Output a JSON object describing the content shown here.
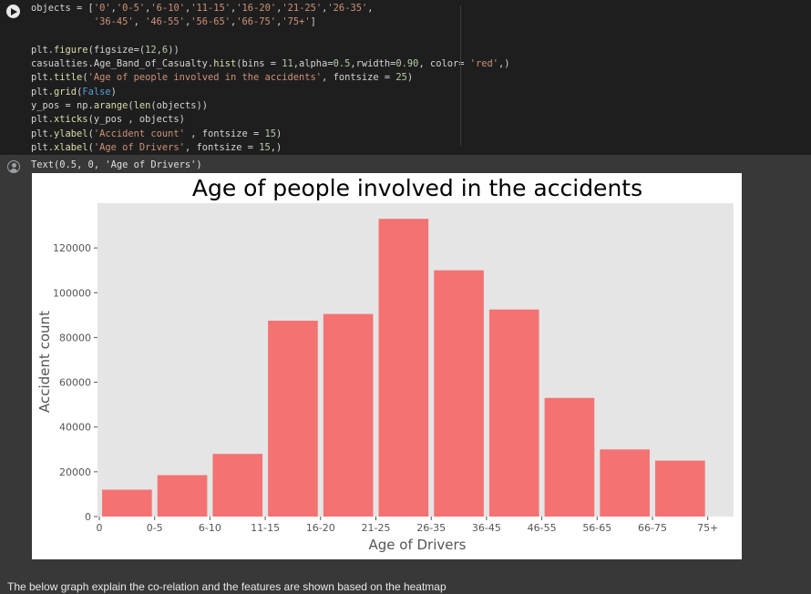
{
  "code_cell": {
    "lines": [
      "objects = ['0','0-5','6-10','11-15','16-20','21-25','26-35',",
      "           '36-45', '46-55','56-65','66-75','75+']",
      "",
      "plt.figure(figsize=(12,6))",
      "casualties.Age_Band_of_Casualty.hist(bins = 11,alpha=0.5,rwidth=0.90, color= 'red',)",
      "plt.title('Age of people involved in the accidents', fontsize = 25)",
      "plt.grid(False)",
      "y_pos = np.arange(len(objects))",
      "plt.xticks(y_pos , objects)",
      "plt.ylabel('Accident count' , fontsize = 15)",
      "plt.xlabel('Age of Drivers', fontsize = 15,)"
    ]
  },
  "output": {
    "text": "Text(0.5, 0, 'Age of Drivers')"
  },
  "chart_data": {
    "type": "bar",
    "title": "Age of people involved in the accidents",
    "xlabel": "Age of Drivers",
    "ylabel": "Accident count",
    "categories": [
      "0",
      "0-5",
      "6-10",
      "11-15",
      "16-20",
      "21-25",
      "26-35",
      "36-45",
      "46-55",
      "56-65",
      "66-75",
      "75+"
    ],
    "values": [
      0,
      12000,
      18500,
      28000,
      87500,
      90500,
      133000,
      110000,
      92500,
      53000,
      30000,
      25000
    ],
    "yticks": [
      "0",
      "20000",
      "40000",
      "60000",
      "80000",
      "100000",
      "120000"
    ],
    "ylim": [
      0,
      140000
    ],
    "grid": false,
    "bar_color": "#f47272",
    "plot_background": "#e5e5e5"
  },
  "markdown": {
    "text": "The below graph explain the co-relation and the features are shown based on the heatmap"
  }
}
